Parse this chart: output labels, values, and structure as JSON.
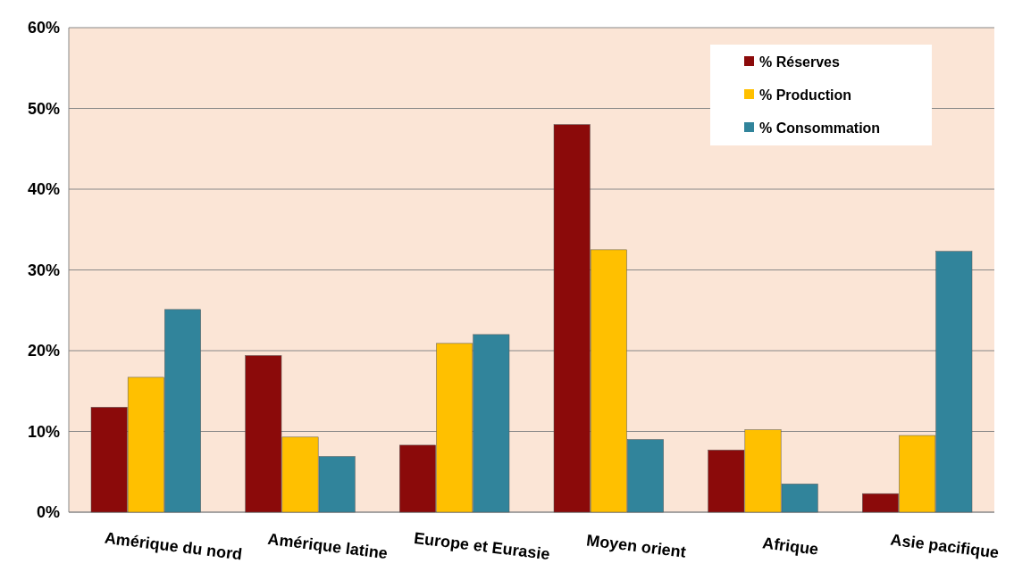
{
  "chart_data": {
    "type": "bar",
    "categories": [
      "Amérique du nord",
      "Amérique latine",
      "Europe et Eurasie",
      "Moyen orient",
      "Afrique",
      "Asie pacifique"
    ],
    "series": [
      {
        "name": "% Réserves",
        "color": "#8b0a0a",
        "values": [
          13,
          19.4,
          8.3,
          48,
          7.7,
          2.3
        ]
      },
      {
        "name": "% Production",
        "color": "#ffc000",
        "values": [
          16.7,
          9.3,
          20.9,
          32.5,
          10.2,
          9.5
        ]
      },
      {
        "name": "% Consommation",
        "color": "#31849b",
        "values": [
          25.1,
          6.9,
          22,
          9,
          3.5,
          32.3
        ]
      }
    ],
    "ylim": [
      0,
      60
    ],
    "yticks": [
      {
        "value": 0,
        "label": "0%"
      },
      {
        "value": 10,
        "label": "10%"
      },
      {
        "value": 20,
        "label": "20%"
      },
      {
        "value": 30,
        "label": "30%"
      },
      {
        "value": 40,
        "label": "40%"
      },
      {
        "value": 50,
        "label": "50%"
      },
      {
        "value": 60,
        "label": "60%"
      }
    ],
    "grid": "y",
    "legend": "top right"
  }
}
